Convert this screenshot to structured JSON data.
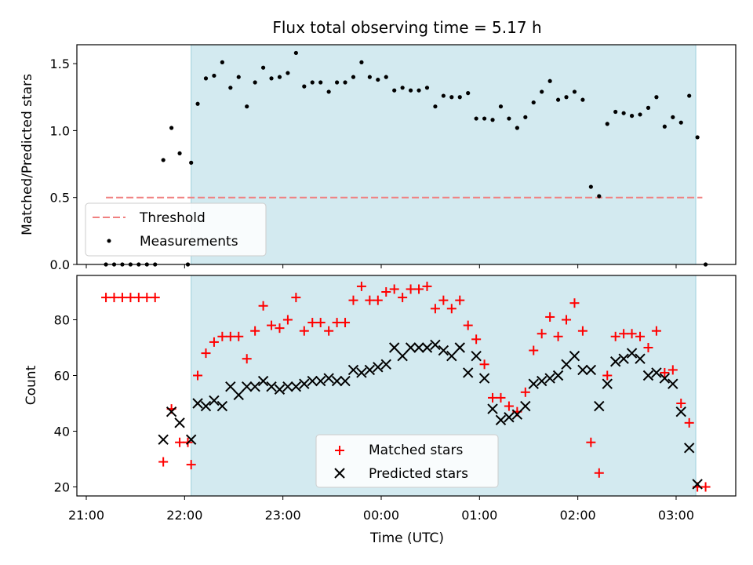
{
  "chart_data": [
    {
      "type": "scatter",
      "title": "Flux total observing time = 5.17 h",
      "xlabel": "",
      "ylabel": "Matched/Predicted stars",
      "ylim": [
        0,
        1.65
      ],
      "xlim": [
        "21:00",
        "03:36"
      ],
      "yticks": [
        "0.0",
        "0.5",
        "1.0",
        "1.5"
      ],
      "shaded_region": {
        "from": "22:04",
        "to": "03:12",
        "color": "#d3eaf0"
      },
      "threshold": {
        "name": "Threshold",
        "value": 0.5,
        "from": "21:12",
        "to": "03:16",
        "color": "#f08080"
      },
      "legend": {
        "position": "lower-left",
        "entries": [
          "Threshold",
          "Measurements"
        ]
      },
      "series": [
        {
          "name": "Measurements",
          "color": "#000000",
          "x": [
            "21:12",
            "21:17",
            "21:22",
            "21:27",
            "21:32",
            "21:37",
            "21:42",
            "21:47",
            "21:52",
            "21:57",
            "22:02",
            "22:04",
            "22:08",
            "22:13",
            "22:18",
            "22:23",
            "22:28",
            "22:33",
            "22:38",
            "22:43",
            "22:48",
            "22:53",
            "22:58",
            "23:03",
            "23:08",
            "23:13",
            "23:18",
            "23:23",
            "23:28",
            "23:33",
            "23:38",
            "23:43",
            "23:48",
            "23:53",
            "23:58",
            "00:03",
            "00:08",
            "00:13",
            "00:18",
            "00:23",
            "00:28",
            "00:33",
            "00:38",
            "00:43",
            "00:48",
            "00:53",
            "00:58",
            "01:03",
            "01:08",
            "01:13",
            "01:18",
            "01:23",
            "01:28",
            "01:33",
            "01:38",
            "01:43",
            "01:48",
            "01:53",
            "01:58",
            "02:03",
            "02:08",
            "02:13",
            "02:18",
            "02:23",
            "02:28",
            "02:33",
            "02:38",
            "02:43",
            "02:48",
            "02:53",
            "02:58",
            "03:03",
            "03:08",
            "03:13",
            "03:18"
          ],
          "y": [
            0,
            0,
            0,
            0,
            0,
            0,
            0,
            0.78,
            1.02,
            0.83,
            0,
            0.76,
            1.2,
            1.39,
            1.41,
            1.51,
            1.32,
            1.4,
            1.18,
            1.36,
            1.47,
            1.39,
            1.4,
            1.43,
            1.58,
            1.33,
            1.36,
            1.36,
            1.29,
            1.36,
            1.36,
            1.4,
            1.51,
            1.4,
            1.38,
            1.4,
            1.3,
            1.32,
            1.3,
            1.3,
            1.32,
            1.18,
            1.26,
            1.25,
            1.25,
            1.28,
            1.09,
            1.09,
            1.08,
            1.18,
            1.09,
            1.02,
            1.1,
            1.21,
            1.29,
            1.37,
            1.23,
            1.25,
            1.29,
            1.23,
            0.58,
            0.51,
            1.05,
            1.14,
            1.13,
            1.11,
            1.12,
            1.17,
            1.25,
            1.03,
            1.1,
            1.06,
            1.26,
            0.95,
            0
          ]
        }
      ]
    },
    {
      "type": "scatter",
      "title": "",
      "xlabel": "Time (UTC)",
      "ylabel": "Count",
      "ylim": [
        16.5,
        95.5
      ],
      "xlim": [
        "21:00",
        "03:36"
      ],
      "xticks": [
        "21:00",
        "22:00",
        "23:00",
        "00:00",
        "01:00",
        "02:00",
        "03:00"
      ],
      "yticks": [
        "20",
        "40",
        "60",
        "80"
      ],
      "shaded_region": {
        "from": "22:04",
        "to": "03:12",
        "color": "#d3eaf0"
      },
      "legend": {
        "position": "lower-center",
        "entries": [
          "Matched stars",
          "Predicted stars"
        ]
      },
      "series": [
        {
          "name": "Matched stars",
          "marker": "plus",
          "color": "#ff0000",
          "x": [
            "21:12",
            "21:17",
            "21:22",
            "21:27",
            "21:32",
            "21:37",
            "21:42",
            "21:47",
            "21:52",
            "21:57",
            "22:02",
            "22:04",
            "22:08",
            "22:13",
            "22:18",
            "22:23",
            "22:28",
            "22:33",
            "22:38",
            "22:43",
            "22:48",
            "22:53",
            "22:58",
            "23:03",
            "23:08",
            "23:13",
            "23:18",
            "23:23",
            "23:28",
            "23:33",
            "23:38",
            "23:43",
            "23:48",
            "23:53",
            "23:58",
            "00:03",
            "00:08",
            "00:13",
            "00:18",
            "00:23",
            "00:28",
            "00:33",
            "00:38",
            "00:43",
            "00:48",
            "00:53",
            "00:58",
            "01:03",
            "01:08",
            "01:13",
            "01:18",
            "01:23",
            "01:28",
            "01:33",
            "01:38",
            "01:43",
            "01:48",
            "01:53",
            "01:58",
            "02:03",
            "02:08",
            "02:13",
            "02:18",
            "02:23",
            "02:28",
            "02:33",
            "02:38",
            "02:43",
            "02:48",
            "02:53",
            "02:58",
            "03:03",
            "03:08",
            "03:13",
            "03:18"
          ],
          "y": [
            88,
            88,
            88,
            88,
            88,
            88,
            88,
            29,
            48,
            36,
            36,
            28,
            60,
            68,
            72,
            74,
            74,
            74,
            66,
            76,
            85,
            78,
            77,
            80,
            88,
            76,
            79,
            79,
            76,
            79,
            79,
            87,
            92,
            87,
            87,
            90,
            91,
            88,
            91,
            91,
            92,
            84,
            87,
            84,
            87,
            78,
            73,
            64,
            52,
            52,
            49,
            47,
            54,
            69,
            75,
            81,
            74,
            80,
            86,
            76,
            36,
            25,
            60,
            74,
            75,
            75,
            74,
            70,
            76,
            61,
            62,
            50,
            43,
            20,
            20
          ]
        },
        {
          "name": "Predicted stars",
          "marker": "x",
          "color": "#000000",
          "x": [
            "21:47",
            "21:52",
            "21:57",
            "22:04",
            "22:08",
            "22:13",
            "22:18",
            "22:23",
            "22:28",
            "22:33",
            "22:38",
            "22:43",
            "22:48",
            "22:53",
            "22:58",
            "23:03",
            "23:08",
            "23:13",
            "23:18",
            "23:23",
            "23:28",
            "23:33",
            "23:38",
            "23:43",
            "23:48",
            "23:53",
            "23:58",
            "00:03",
            "00:08",
            "00:13",
            "00:18",
            "00:23",
            "00:28",
            "00:33",
            "00:38",
            "00:43",
            "00:48",
            "00:53",
            "00:58",
            "01:03",
            "01:08",
            "01:13",
            "01:18",
            "01:23",
            "01:28",
            "01:33",
            "01:38",
            "01:43",
            "01:48",
            "01:53",
            "01:58",
            "02:03",
            "02:08",
            "02:13",
            "02:18",
            "02:23",
            "02:28",
            "02:33",
            "02:38",
            "02:43",
            "02:48",
            "02:53",
            "02:58",
            "03:03",
            "03:08",
            "03:13"
          ],
          "y": [
            37,
            47,
            43,
            37,
            50,
            49,
            51,
            49,
            56,
            53,
            56,
            56,
            58,
            56,
            55,
            56,
            56,
            57,
            58,
            58,
            59,
            58,
            58,
            62,
            61,
            62,
            63,
            64,
            70,
            67,
            70,
            70,
            70,
            71,
            69,
            67,
            70,
            61,
            67,
            59,
            48,
            44,
            45,
            46,
            49,
            57,
            58,
            59,
            60,
            64,
            67,
            62,
            62,
            49,
            57,
            65,
            66,
            68,
            66,
            60,
            61,
            59,
            57,
            47,
            34,
            21
          ]
        }
      ]
    }
  ]
}
